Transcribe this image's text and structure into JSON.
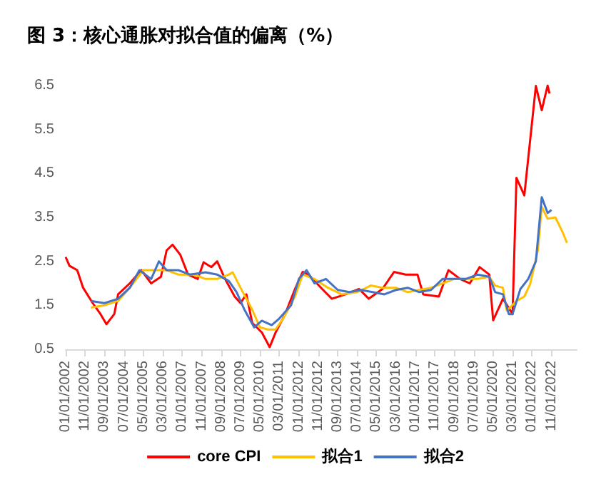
{
  "chart_data": {
    "type": "line",
    "title": "图 3：核心通胀对拟合值的偏离（%）",
    "xlim": [
      "2002-01",
      "2023-12"
    ],
    "xticks": [
      {
        "value": "2002-01",
        "label": "01/01/2002"
      },
      {
        "value": "2002-11",
        "label": "11/01/2002"
      },
      {
        "value": "2003-09",
        "label": "09/01/2003"
      },
      {
        "value": "2004-07",
        "label": "07/01/2004"
      },
      {
        "value": "2005-05",
        "label": "05/01/2005"
      },
      {
        "value": "2006-03",
        "label": "03/01/2006"
      },
      {
        "value": "2007-01",
        "label": "01/01/2007"
      },
      {
        "value": "2007-11",
        "label": "11/01/2007"
      },
      {
        "value": "2008-09",
        "label": "09/01/2008"
      },
      {
        "value": "2009-07",
        "label": "07/01/2009"
      },
      {
        "value": "2010-05",
        "label": "05/01/2010"
      },
      {
        "value": "2011-03",
        "label": "03/01/2011"
      },
      {
        "value": "2012-01",
        "label": "01/01/2012"
      },
      {
        "value": "2012-11",
        "label": "11/01/2012"
      },
      {
        "value": "2013-09",
        "label": "09/01/2013"
      },
      {
        "value": "2014-07",
        "label": "07/01/2014"
      },
      {
        "value": "2015-05",
        "label": "05/01/2015"
      },
      {
        "value": "2016-03",
        "label": "03/01/2016"
      },
      {
        "value": "2017-01",
        "label": "01/01/2017"
      },
      {
        "value": "2017-11",
        "label": "11/01/2017"
      },
      {
        "value": "2018-09",
        "label": "09/01/2018"
      },
      {
        "value": "2019-07",
        "label": "07/01/2019"
      },
      {
        "value": "2020-05",
        "label": "05/01/2020"
      },
      {
        "value": "2021-03",
        "label": "03/01/2021"
      },
      {
        "value": "2022-01",
        "label": "01/01/2022"
      },
      {
        "value": "2022-11",
        "label": "11/01/2022"
      }
    ],
    "ylim": [
      0.5,
      6.5
    ],
    "yticks": [
      0.5,
      1.5,
      2.5,
      3.5,
      4.5,
      5.5,
      6.5
    ],
    "grid": false,
    "legend": "bottom",
    "marker": "none",
    "line_style": "solid",
    "series": [
      {
        "name": "core CPI",
        "color": "#ff0000",
        "x": [
          "2002-01",
          "2002-03",
          "2002-07",
          "2002-10",
          "2003-03",
          "2003-07",
          "2003-10",
          "2004-02",
          "2004-04",
          "2004-10",
          "2005-04",
          "2005-09",
          "2006-02",
          "2006-05",
          "2006-08",
          "2006-12",
          "2007-04",
          "2007-09",
          "2007-12",
          "2008-04",
          "2008-07",
          "2008-11",
          "2009-04",
          "2009-07",
          "2009-10",
          "2010-01",
          "2010-06",
          "2010-10",
          "2011-01",
          "2011-06",
          "2011-11",
          "2012-03",
          "2012-06",
          "2013-01",
          "2013-06",
          "2014-01",
          "2014-08",
          "2015-01",
          "2015-08",
          "2016-02",
          "2016-08",
          "2017-02",
          "2017-05",
          "2018-01",
          "2018-06",
          "2018-12",
          "2019-05",
          "2019-10",
          "2020-03",
          "2020-05",
          "2020-10",
          "2021-03",
          "2021-05",
          "2021-09",
          "2021-11",
          "2022-03",
          "2022-06",
          "2022-09",
          "2022-10"
        ],
        "values": [
          2.6,
          2.4,
          2.3,
          1.9,
          1.55,
          1.3,
          1.07,
          1.3,
          1.75,
          2.0,
          2.3,
          2.0,
          2.15,
          2.75,
          2.88,
          2.65,
          2.2,
          2.1,
          2.48,
          2.37,
          2.5,
          2.1,
          1.7,
          1.55,
          1.75,
          1.1,
          0.88,
          0.55,
          0.88,
          1.3,
          1.87,
          2.26,
          2.2,
          1.87,
          1.65,
          1.75,
          1.87,
          1.65,
          1.87,
          2.26,
          2.2,
          2.2,
          1.75,
          1.7,
          2.3,
          2.1,
          2.0,
          2.37,
          2.2,
          1.16,
          1.65,
          1.3,
          4.4,
          4.0,
          4.84,
          6.49,
          5.94,
          6.5,
          6.32
        ]
      },
      {
        "name": "拟合1",
        "color": "#ffc000",
        "x": [
          "2003-02",
          "2003-09",
          "2004-04",
          "2004-10",
          "2005-05",
          "2005-11",
          "2006-05",
          "2006-11",
          "2007-07",
          "2008-01",
          "2008-07",
          "2009-01",
          "2009-03",
          "2009-07",
          "2010-01",
          "2010-05",
          "2010-09",
          "2011-01",
          "2011-05",
          "2011-11",
          "2012-03",
          "2012-09",
          "2013-04",
          "2013-11",
          "2014-07",
          "2015-02",
          "2015-08",
          "2016-03",
          "2016-09",
          "2017-03",
          "2017-09",
          "2018-03",
          "2018-09",
          "2019-03",
          "2019-09",
          "2020-03",
          "2020-06",
          "2020-10",
          "2020-12",
          "2021-05",
          "2021-09",
          "2021-12",
          "2022-04",
          "2022-06",
          "2022-09",
          "2023-01",
          "2023-05",
          "2023-07"
        ],
        "values": [
          1.45,
          1.5,
          1.6,
          1.9,
          2.3,
          2.3,
          2.3,
          2.2,
          2.2,
          2.1,
          2.1,
          2.2,
          2.25,
          1.9,
          1.4,
          1.0,
          0.95,
          0.95,
          1.2,
          1.7,
          2.2,
          2.1,
          1.9,
          1.75,
          1.8,
          1.95,
          1.9,
          1.9,
          1.8,
          1.85,
          1.9,
          2.0,
          2.1,
          2.1,
          2.1,
          2.15,
          1.95,
          1.9,
          1.38,
          1.6,
          1.7,
          1.98,
          2.75,
          3.74,
          3.47,
          3.5,
          3.14,
          2.92
        ]
      },
      {
        "name": "拟合2",
        "color": "#4472c4",
        "x": [
          "2003-02",
          "2003-09",
          "2004-04",
          "2004-10",
          "2005-03",
          "2005-09",
          "2006-01",
          "2006-05",
          "2006-11",
          "2007-05",
          "2008-01",
          "2008-07",
          "2009-01",
          "2009-05",
          "2009-09",
          "2010-02",
          "2010-06",
          "2010-11",
          "2011-03",
          "2011-09",
          "2012-01",
          "2012-05",
          "2012-09",
          "2013-03",
          "2013-09",
          "2014-03",
          "2014-09",
          "2015-03",
          "2015-09",
          "2016-03",
          "2016-09",
          "2017-03",
          "2017-09",
          "2018-03",
          "2018-09",
          "2019-03",
          "2019-09",
          "2020-03",
          "2020-06",
          "2020-10",
          "2021-01",
          "2021-03",
          "2021-07",
          "2021-11",
          "2022-03",
          "2022-06",
          "2022-09",
          "2022-11"
        ],
        "values": [
          1.6,
          1.55,
          1.65,
          1.9,
          2.3,
          2.1,
          2.5,
          2.3,
          2.3,
          2.2,
          2.25,
          2.2,
          2.05,
          1.8,
          1.4,
          1.0,
          1.15,
          1.05,
          1.2,
          1.5,
          2.1,
          2.3,
          2.0,
          2.1,
          1.85,
          1.8,
          1.85,
          1.8,
          1.75,
          1.85,
          1.9,
          1.8,
          1.85,
          2.1,
          2.1,
          2.1,
          2.2,
          2.15,
          1.8,
          1.75,
          1.3,
          1.3,
          1.87,
          2.1,
          2.5,
          3.96,
          3.6,
          3.67
        ]
      }
    ]
  }
}
